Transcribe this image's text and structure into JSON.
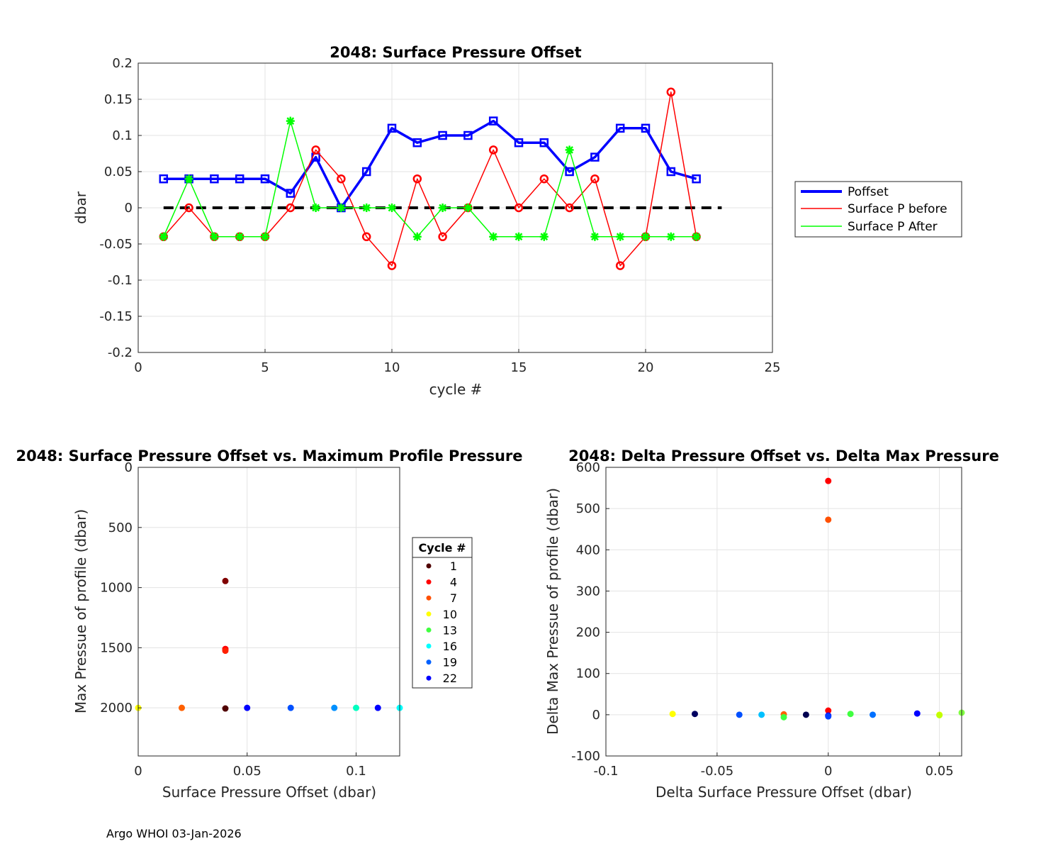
{
  "footer": "Argo WHOI 03-Jan-2026",
  "chart_data": [
    {
      "type": "line",
      "title": "2048: Surface Pressure Offset",
      "xlabel": "cycle #",
      "ylabel": "dbar",
      "xlim": [
        0,
        25
      ],
      "ylim": [
        -0.2,
        0.2
      ],
      "xticks": [
        0,
        5,
        10,
        15,
        20,
        25
      ],
      "yticks": [
        -0.2,
        -0.15,
        -0.1,
        -0.05,
        0,
        0.05,
        0.1,
        0.15,
        0.2
      ],
      "ytick_labels": [
        "-0.2",
        "-0.15",
        "-0.1",
        "-0.05",
        "0",
        "0.05",
        "0.1",
        "0.15",
        "0.2"
      ],
      "xtick_labels": [
        "0",
        "5",
        "10",
        "15",
        "20",
        "25"
      ],
      "grid": true,
      "legend_position": "right",
      "zero_line": {
        "x": [
          1,
          23
        ],
        "y": 0,
        "color": "#000000"
      },
      "x": [
        1,
        2,
        3,
        4,
        5,
        6,
        7,
        8,
        9,
        10,
        11,
        12,
        13,
        14,
        15,
        16,
        17,
        18,
        19,
        20,
        21,
        22
      ],
      "series": [
        {
          "name": "Poffset",
          "color": "#0000ff",
          "marker": "square",
          "values": [
            0.04,
            0.04,
            0.04,
            0.04,
            0.04,
            0.02,
            0.07,
            0,
            0.05,
            0.11,
            0.09,
            0.1,
            0.1,
            0.12,
            0.09,
            0.09,
            0.05,
            0.07,
            0.11,
            0.11,
            0.05,
            0.04
          ]
        },
        {
          "name": "Surface P before",
          "color": "#ff0000",
          "marker": "circle",
          "values": [
            -0.04,
            0,
            -0.04,
            -0.04,
            -0.04,
            0,
            0.08,
            0.04,
            -0.04,
            -0.08,
            0.04,
            -0.04,
            0,
            0.08,
            0,
            0.04,
            0,
            0.04,
            -0.08,
            -0.04,
            0.16,
            -0.04
          ]
        },
        {
          "name": "Surface P After",
          "color": "#00ff00",
          "marker": "star",
          "values": [
            -0.04,
            0.04,
            -0.04,
            -0.04,
            -0.04,
            0.12,
            0,
            0,
            0,
            0,
            -0.04,
            0,
            0,
            -0.04,
            -0.04,
            -0.04,
            0.08,
            -0.04,
            -0.04,
            -0.04,
            -0.04,
            -0.04
          ]
        }
      ]
    },
    {
      "type": "scatter",
      "title": "2048: Surface Pressure Offset vs. Maximum Profile Pressure",
      "xlabel": "Surface Pressure Offset (dbar)",
      "ylabel": "Max Pressue of profile (dbar)",
      "xlim": [
        0,
        0.12
      ],
      "ylim": [
        2400,
        0
      ],
      "xticks": [
        0,
        0.05,
        0.1
      ],
      "xtick_labels": [
        "0",
        "0.05",
        "0.1"
      ],
      "yticks": [
        0,
        500,
        1000,
        1500,
        2000
      ],
      "ytick_labels": [
        "0",
        "500",
        "1000",
        "1500",
        "2000"
      ],
      "y_reversed": true,
      "grid": true,
      "legend_title": "Cycle #",
      "legend_entries": [
        "1",
        "4",
        "7",
        "10",
        "13",
        "16",
        "19",
        "22"
      ],
      "legend_colors": [
        "#500000",
        "#ff0000",
        "#ff5000",
        "#ffff00",
        "#40ff40",
        "#00ffff",
        "#0060ff",
        "#0000ff"
      ],
      "points": [
        {
          "x": 0.04,
          "y": 945,
          "color": "#800000"
        },
        {
          "x": 0.04,
          "y": 1510,
          "color": "#ff0000"
        },
        {
          "x": 0.04,
          "y": 1525,
          "color": "#ff2000"
        },
        {
          "x": 0.04,
          "y": 2005,
          "color": "#500000"
        },
        {
          "x": 0.02,
          "y": 2000,
          "color": "#ff6000"
        },
        {
          "x": 0,
          "y": 2000,
          "color": "#ffff00"
        },
        {
          "x": 0.05,
          "y": 2000,
          "color": "#0000ff"
        },
        {
          "x": 0.07,
          "y": 2000,
          "color": "#0050ff"
        },
        {
          "x": 0.09,
          "y": 2000,
          "color": "#0090ff"
        },
        {
          "x": 0.1,
          "y": 2000,
          "color": "#00ffc0"
        },
        {
          "x": 0.11,
          "y": 2000,
          "color": "#0000ff"
        },
        {
          "x": 0.12,
          "y": 2000,
          "color": "#00ffff"
        }
      ]
    },
    {
      "type": "scatter",
      "title": "2048: Delta Pressure Offset vs. Delta Max Pressure",
      "xlabel": "Delta Surface Pressure Offset (dbar)",
      "ylabel": "Delta Max Pressue of profile (dbar)",
      "xlim": [
        -0.1,
        0.06
      ],
      "ylim": [
        -100,
        600
      ],
      "xticks": [
        -0.1,
        -0.05,
        0,
        0.05
      ],
      "xtick_labels": [
        "-0.1",
        "-0.05",
        "0",
        "0.05"
      ],
      "yticks": [
        -100,
        0,
        100,
        200,
        300,
        400,
        500,
        600
      ],
      "ytick_labels": [
        "-100",
        "0",
        "100",
        "200",
        "300",
        "400",
        "500",
        "600"
      ],
      "grid": true,
      "points": [
        {
          "x": 0,
          "y": 567,
          "color": "#ff0000"
        },
        {
          "x": 0,
          "y": 473,
          "color": "#ff5000"
        },
        {
          "x": 0,
          "y": 10,
          "color": "#ff0000"
        },
        {
          "x": 0,
          "y": -2,
          "color": "#0000ff"
        },
        {
          "x": 0,
          "y": -4,
          "color": "#0040ff"
        },
        {
          "x": -0.07,
          "y": 2,
          "color": "#ffff00"
        },
        {
          "x": -0.06,
          "y": 2,
          "color": "#000060"
        },
        {
          "x": -0.04,
          "y": 0,
          "color": "#0050ff"
        },
        {
          "x": -0.03,
          "y": 0,
          "color": "#00c0ff"
        },
        {
          "x": -0.02,
          "y": 1,
          "color": "#ff6000"
        },
        {
          "x": -0.02,
          "y": -6,
          "color": "#40ff40"
        },
        {
          "x": -0.01,
          "y": 0,
          "color": "#000050"
        },
        {
          "x": 0.01,
          "y": 2,
          "color": "#40ff40"
        },
        {
          "x": 0.02,
          "y": 0,
          "color": "#0070ff"
        },
        {
          "x": 0.04,
          "y": 3,
          "color": "#0000ff"
        },
        {
          "x": 0.05,
          "y": 0,
          "color": "#ffff00"
        },
        {
          "x": 0.05,
          "y": -1,
          "color": "#c0ff00"
        },
        {
          "x": 0.06,
          "y": 5,
          "color": "#80ff40"
        }
      ]
    }
  ]
}
